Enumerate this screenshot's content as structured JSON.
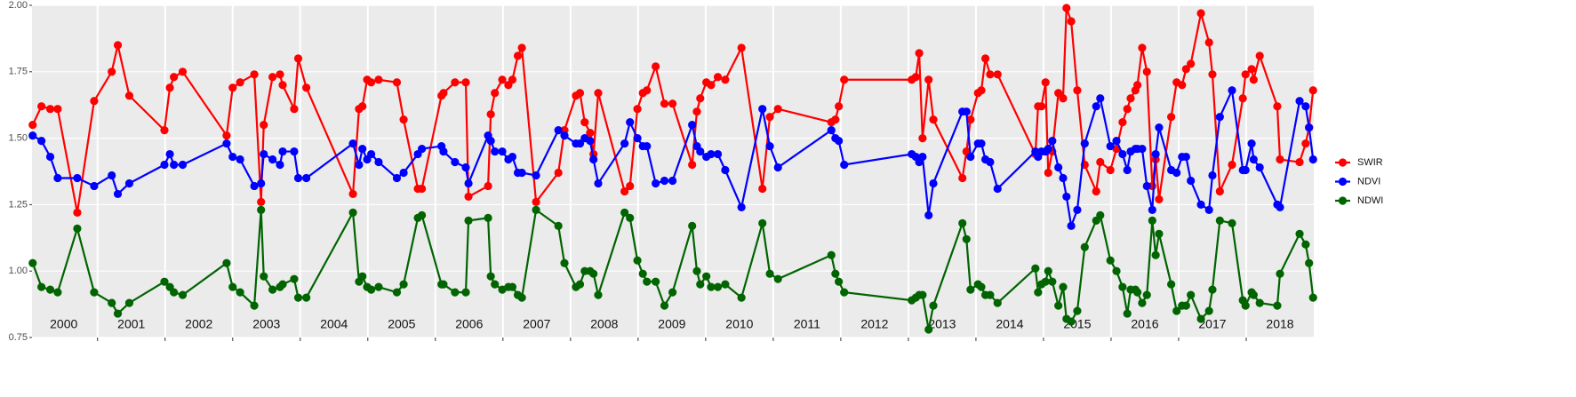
{
  "chart_data": {
    "type": "line",
    "x": [
      2000.04,
      2000.17,
      2000.3,
      2000.41,
      2000.7,
      2000.95,
      2001.21,
      2001.3,
      2001.47,
      2001.99,
      2002.07,
      2002.13,
      2002.26,
      2002.91,
      2003.0,
      2003.11,
      2003.32,
      2003.42,
      2003.46,
      2003.59,
      2003.7,
      2003.74,
      2003.91,
      2003.97,
      2004.09,
      2004.78,
      2004.87,
      2004.92,
      2004.99,
      2005.05,
      2005.16,
      2005.43,
      2005.53,
      2005.74,
      2005.8,
      2006.09,
      2006.12,
      2006.29,
      2006.45,
      2006.49,
      2006.78,
      2006.82,
      2006.88,
      2006.99,
      2007.08,
      2007.14,
      2007.22,
      2007.28,
      2007.49,
      2007.82,
      2007.91,
      2008.08,
      2008.14,
      2008.21,
      2008.29,
      2008.34,
      2008.41,
      2008.8,
      2008.88,
      2008.99,
      2009.07,
      2009.13,
      2009.26,
      2009.39,
      2009.51,
      2009.8,
      2009.87,
      2009.92,
      2010.01,
      2010.08,
      2010.18,
      2010.29,
      2010.53,
      2010.84,
      2010.95,
      2011.07,
      2011.86,
      2011.92,
      2011.97,
      2012.05,
      2013.05,
      2013.11,
      2013.16,
      2013.21,
      2013.3,
      2013.37,
      2013.8,
      2013.86,
      2013.92,
      2014.03,
      2014.08,
      2014.14,
      2014.21,
      2014.32,
      2014.88,
      2014.92,
      2014.97,
      2015.03,
      2015.07,
      2015.13,
      2015.22,
      2015.29,
      2015.34,
      2015.41,
      2015.5,
      2015.61,
      2015.78,
      2015.84,
      2015.99,
      2016.08,
      2016.17,
      2016.24,
      2016.29,
      2016.36,
      2016.39,
      2016.46,
      2016.53,
      2016.61,
      2016.66,
      2016.71,
      2016.89,
      2016.97,
      2017.05,
      2017.11,
      2017.18,
      2017.33,
      2017.45,
      2017.5,
      2017.61,
      2017.79,
      2017.95,
      2017.99,
      2018.08,
      2018.11,
      2018.2,
      2018.46,
      2018.5,
      2018.79,
      2018.88,
      2018.93,
      2018.99
    ],
    "series": [
      {
        "name": "SWIR",
        "color": "#ff0000",
        "values": [
          1.55,
          1.62,
          1.61,
          1.61,
          1.22,
          1.64,
          1.75,
          1.85,
          1.66,
          1.53,
          1.69,
          1.73,
          1.75,
          1.51,
          1.69,
          1.71,
          1.74,
          1.26,
          1.55,
          1.73,
          1.74,
          1.7,
          1.61,
          1.8,
          1.69,
          1.29,
          1.61,
          1.62,
          1.72,
          1.71,
          1.72,
          1.71,
          1.57,
          1.31,
          1.31,
          1.66,
          1.67,
          1.71,
          1.71,
          1.28,
          1.32,
          1.59,
          1.67,
          1.72,
          1.7,
          1.72,
          1.81,
          1.84,
          1.26,
          1.37,
          1.53,
          1.66,
          1.67,
          1.56,
          1.52,
          1.44,
          1.67,
          1.3,
          1.32,
          1.61,
          1.67,
          1.68,
          1.77,
          1.63,
          1.63,
          1.4,
          1.6,
          1.65,
          1.71,
          1.7,
          1.73,
          1.72,
          1.84,
          1.31,
          1.58,
          1.61,
          1.56,
          1.57,
          1.62,
          1.72,
          1.72,
          1.73,
          1.82,
          1.5,
          1.72,
          1.57,
          1.35,
          1.45,
          1.57,
          1.67,
          1.68,
          1.8,
          1.74,
          1.74,
          1.44,
          1.62,
          1.62,
          1.71,
          1.37,
          1.45,
          1.67,
          1.65,
          1.99,
          1.94,
          1.68,
          1.4,
          1.3,
          1.41,
          1.38,
          1.46,
          1.56,
          1.61,
          1.65,
          1.68,
          1.7,
          1.84,
          1.75,
          1.32,
          1.42,
          1.27,
          1.58,
          1.71,
          1.7,
          1.76,
          1.78,
          1.97,
          1.86,
          1.74,
          1.3,
          1.4,
          1.65,
          1.74,
          1.76,
          1.72,
          1.81,
          1.62,
          1.42,
          1.41,
          1.48,
          1.54,
          1.68
        ]
      },
      {
        "name": "NDVI",
        "color": "#0000ff",
        "values": [
          1.51,
          1.49,
          1.43,
          1.35,
          1.35,
          1.32,
          1.36,
          1.29,
          1.33,
          1.4,
          1.44,
          1.4,
          1.4,
          1.48,
          1.43,
          1.42,
          1.32,
          1.33,
          1.44,
          1.42,
          1.4,
          1.45,
          1.45,
          1.35,
          1.35,
          1.48,
          1.4,
          1.46,
          1.42,
          1.44,
          1.41,
          1.35,
          1.37,
          1.44,
          1.46,
          1.47,
          1.45,
          1.41,
          1.39,
          1.33,
          1.51,
          1.49,
          1.45,
          1.45,
          1.42,
          1.43,
          1.37,
          1.37,
          1.36,
          1.53,
          1.51,
          1.48,
          1.48,
          1.5,
          1.49,
          1.42,
          1.33,
          1.48,
          1.56,
          1.5,
          1.47,
          1.47,
          1.33,
          1.34,
          1.34,
          1.55,
          1.47,
          1.45,
          1.43,
          1.44,
          1.44,
          1.38,
          1.24,
          1.61,
          1.47,
          1.39,
          1.53,
          1.5,
          1.49,
          1.4,
          1.44,
          1.43,
          1.41,
          1.43,
          1.21,
          1.33,
          1.6,
          1.6,
          1.43,
          1.48,
          1.48,
          1.42,
          1.41,
          1.31,
          1.45,
          1.43,
          1.45,
          1.45,
          1.46,
          1.49,
          1.39,
          1.35,
          1.28,
          1.17,
          1.23,
          1.48,
          1.62,
          1.65,
          1.47,
          1.49,
          1.44,
          1.38,
          1.45,
          1.46,
          1.46,
          1.46,
          1.32,
          1.23,
          1.44,
          1.54,
          1.38,
          1.37,
          1.43,
          1.43,
          1.34,
          1.25,
          1.23,
          1.36,
          1.58,
          1.68,
          1.38,
          1.38,
          1.48,
          1.42,
          1.39,
          1.25,
          1.24,
          1.64,
          1.62,
          1.54,
          1.42
        ]
      },
      {
        "name": "NDWI",
        "color": "#006400",
        "values": [
          1.03,
          0.94,
          0.93,
          0.92,
          1.16,
          0.92,
          0.88,
          0.84,
          0.88,
          0.96,
          0.94,
          0.92,
          0.91,
          1.03,
          0.94,
          0.92,
          0.87,
          1.23,
          0.98,
          0.93,
          0.94,
          0.95,
          0.97,
          0.9,
          0.9,
          1.22,
          0.96,
          0.98,
          0.94,
          0.93,
          0.94,
          0.92,
          0.95,
          1.2,
          1.21,
          0.95,
          0.95,
          0.92,
          0.92,
          1.19,
          1.2,
          0.98,
          0.95,
          0.93,
          0.94,
          0.94,
          0.91,
          0.9,
          1.23,
          1.17,
          1.03,
          0.94,
          0.95,
          1.0,
          1.0,
          0.99,
          0.91,
          1.22,
          1.2,
          1.04,
          0.99,
          0.96,
          0.96,
          0.87,
          0.92,
          1.17,
          1.0,
          0.95,
          0.98,
          0.94,
          0.94,
          0.95,
          0.9,
          1.18,
          0.99,
          0.97,
          1.06,
          0.99,
          0.96,
          0.92,
          0.89,
          0.9,
          0.91,
          0.91,
          0.78,
          0.87,
          1.18,
          1.12,
          0.93,
          0.95,
          0.94,
          0.91,
          0.91,
          0.88,
          1.01,
          0.92,
          0.95,
          0.96,
          1.0,
          0.96,
          0.87,
          0.94,
          0.82,
          0.81,
          0.85,
          1.09,
          1.19,
          1.21,
          1.04,
          1.0,
          0.94,
          0.84,
          0.93,
          0.93,
          0.92,
          0.88,
          0.91,
          1.19,
          1.06,
          1.14,
          0.95,
          0.85,
          0.87,
          0.87,
          0.91,
          0.82,
          0.85,
          0.93,
          1.19,
          1.18,
          0.89,
          0.87,
          0.92,
          0.91,
          0.88,
          0.87,
          0.99,
          1.14,
          1.1,
          1.03,
          0.9
        ]
      }
    ],
    "xlim": [
      2000.03,
      2019
    ],
    "xticks": [
      {
        "value": 2000.5,
        "label": "2000"
      },
      {
        "value": 2001.5,
        "label": "2001"
      },
      {
        "value": 2002.5,
        "label": "2002"
      },
      {
        "value": 2003.5,
        "label": "2003"
      },
      {
        "value": 2004.5,
        "label": "2004"
      },
      {
        "value": 2005.5,
        "label": "2005"
      },
      {
        "value": 2006.5,
        "label": "2006"
      },
      {
        "value": 2007.5,
        "label": "2007"
      },
      {
        "value": 2008.5,
        "label": "2008"
      },
      {
        "value": 2009.5,
        "label": "2009"
      },
      {
        "value": 2010.5,
        "label": "2010"
      },
      {
        "value": 2011.5,
        "label": "2011"
      },
      {
        "value": 2012.5,
        "label": "2012"
      },
      {
        "value": 2013.5,
        "label": "2013"
      },
      {
        "value": 2014.5,
        "label": "2014"
      },
      {
        "value": 2015.5,
        "label": "2015"
      },
      {
        "value": 2016.5,
        "label": "2016"
      },
      {
        "value": 2017.5,
        "label": "2017"
      },
      {
        "value": 2018.5,
        "label": "2018"
      }
    ],
    "xgrid": [
      2001,
      2002,
      2003,
      2004,
      2005,
      2006,
      2007,
      2008,
      2009,
      2010,
      2011,
      2012,
      2013,
      2014,
      2015,
      2016,
      2017,
      2018
    ],
    "ylim": [
      0.75,
      2.0
    ],
    "yticks": [
      0.75,
      {
        "value": 1.0,
        "label": "1.00"
      },
      1.25,
      {
        "value": 1.5,
        "label": "1.50"
      },
      1.75,
      {
        "value": 2.0,
        "label": "2.00"
      }
    ],
    "grid": true,
    "legend": "right"
  }
}
